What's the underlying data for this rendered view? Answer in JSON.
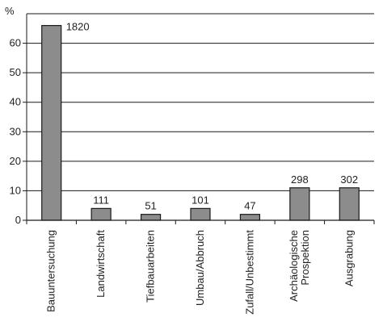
{
  "chart_data": {
    "type": "bar",
    "ylabel": "%",
    "ylim": [
      0,
      70
    ],
    "yticks": [
      0,
      10,
      20,
      30,
      40,
      50,
      60
    ],
    "grid": true,
    "categories": [
      "Bauuntersuchung",
      "Landwirtschaft",
      "Tiefbauarbeiten",
      "Umbau/Abbruch",
      "Zufall/Unbestimmt",
      "Archäologische\nProspektion",
      "Ausgrabung"
    ],
    "values": [
      66,
      4,
      2,
      4,
      2,
      11,
      11
    ],
    "data_labels": [
      "1820",
      "111",
      "51",
      "101",
      "47",
      "298",
      "302"
    ],
    "colors": {
      "bar_fill": "#8c8c8c",
      "bar_stroke": "#1a1a1a",
      "grid": "#1a1a1a",
      "axis": "#1a1a1a"
    }
  }
}
